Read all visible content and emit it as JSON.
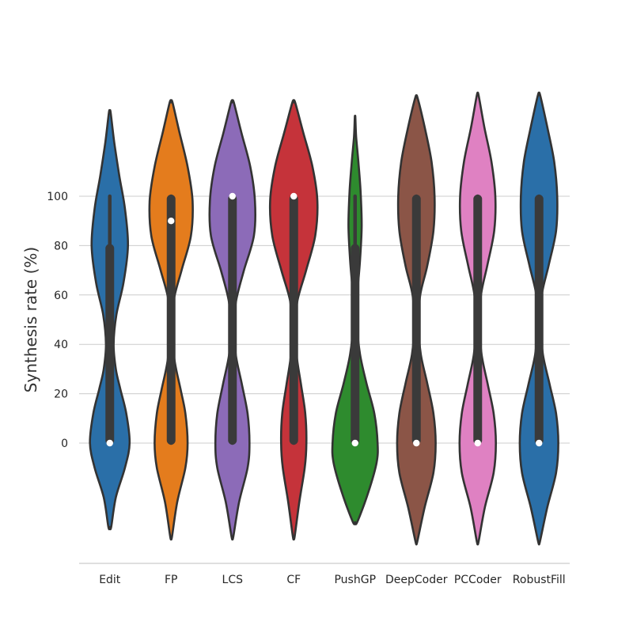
{
  "chart_data": {
    "type": "violin",
    "ylabel": "Synthesis rate (%)",
    "yticks": [
      0,
      20,
      40,
      60,
      80,
      100
    ],
    "grid": "horizontal",
    "categories": [
      "Edit",
      "FP",
      "LCS",
      "CF",
      "PushGP",
      "DeepCoder",
      "PCCoder",
      "RobustFill"
    ],
    "colors": [
      "#2a6fa8",
      "#e47c1d",
      "#8c6bb8",
      "#c5333a",
      "#2e8b2e",
      "#8b5547",
      "#df81c2",
      "#2a6fa8"
    ],
    "violins": [
      {
        "category": "Edit",
        "extent": [
          -34,
          134
        ],
        "profile": [
          [
            -34,
            0.05
          ],
          [
            -22,
            0.22
          ],
          [
            -10,
            0.55
          ],
          [
            0,
            0.72
          ],
          [
            12,
            0.6
          ],
          [
            22,
            0.38
          ],
          [
            30,
            0.22
          ],
          [
            40,
            0.14
          ],
          [
            52,
            0.24
          ],
          [
            65,
            0.5
          ],
          [
            80,
            0.66
          ],
          [
            95,
            0.55
          ],
          [
            108,
            0.35
          ],
          [
            122,
            0.16
          ],
          [
            134,
            0.03
          ]
        ],
        "box": [
          0,
          80
        ],
        "whiskers": [
          0,
          100
        ],
        "median": 0
      },
      {
        "category": "FP",
        "extent": [
          -38,
          138
        ],
        "profile": [
          [
            -38,
            0.03
          ],
          [
            -24,
            0.22
          ],
          [
            -10,
            0.52
          ],
          [
            0,
            0.6
          ],
          [
            12,
            0.52
          ],
          [
            22,
            0.34
          ],
          [
            34,
            0.12
          ],
          [
            46,
            0.06
          ],
          [
            58,
            0.1
          ],
          [
            70,
            0.38
          ],
          [
            84,
            0.72
          ],
          [
            98,
            0.78
          ],
          [
            112,
            0.6
          ],
          [
            126,
            0.3
          ],
          [
            138,
            0.05
          ]
        ],
        "box": [
          0,
          100
        ],
        "whiskers": [
          0,
          100
        ],
        "median": 90
      },
      {
        "category": "LCS",
        "extent": [
          -38,
          138
        ],
        "profile": [
          [
            -38,
            0.03
          ],
          [
            -24,
            0.24
          ],
          [
            -10,
            0.55
          ],
          [
            0,
            0.62
          ],
          [
            12,
            0.55
          ],
          [
            24,
            0.34
          ],
          [
            36,
            0.12
          ],
          [
            48,
            0.06
          ],
          [
            58,
            0.14
          ],
          [
            70,
            0.42
          ],
          [
            84,
            0.78
          ],
          [
            98,
            0.82
          ],
          [
            112,
            0.65
          ],
          [
            126,
            0.32
          ],
          [
            138,
            0.05
          ]
        ],
        "box": [
          0,
          100
        ],
        "whiskers": [
          0,
          100
        ],
        "median": 100
      },
      {
        "category": "CF",
        "extent": [
          -38,
          138
        ],
        "profile": [
          [
            -38,
            0.03
          ],
          [
            -24,
            0.2
          ],
          [
            -10,
            0.4
          ],
          [
            0,
            0.46
          ],
          [
            12,
            0.42
          ],
          [
            24,
            0.26
          ],
          [
            36,
            0.1
          ],
          [
            48,
            0.06
          ],
          [
            58,
            0.14
          ],
          [
            70,
            0.45
          ],
          [
            84,
            0.78
          ],
          [
            98,
            0.86
          ],
          [
            112,
            0.68
          ],
          [
            126,
            0.34
          ],
          [
            138,
            0.05
          ]
        ],
        "box": [
          0,
          100
        ],
        "whiskers": [
          0,
          100
        ],
        "median": 100
      },
      {
        "category": "PushGP",
        "extent": [
          -32,
          132
        ],
        "profile": [
          [
            -32,
            0.08
          ],
          [
            -20,
            0.48
          ],
          [
            -8,
            0.78
          ],
          [
            0,
            0.82
          ],
          [
            12,
            0.7
          ],
          [
            24,
            0.42
          ],
          [
            36,
            0.18
          ],
          [
            48,
            0.07
          ],
          [
            60,
            0.08
          ],
          [
            74,
            0.18
          ],
          [
            88,
            0.24
          ],
          [
            102,
            0.2
          ],
          [
            114,
            0.12
          ],
          [
            124,
            0.04
          ],
          [
            132,
            0.01
          ]
        ],
        "box": [
          0,
          80
        ],
        "whiskers": [
          0,
          100
        ],
        "median": 0
      },
      {
        "category": "DeepCoder",
        "extent": [
          -40,
          140
        ],
        "profile": [
          [
            -40,
            0.03
          ],
          [
            -26,
            0.3
          ],
          [
            -12,
            0.62
          ],
          [
            0,
            0.7
          ],
          [
            12,
            0.62
          ],
          [
            24,
            0.4
          ],
          [
            36,
            0.16
          ],
          [
            48,
            0.08
          ],
          [
            60,
            0.14
          ],
          [
            72,
            0.4
          ],
          [
            86,
            0.62
          ],
          [
            100,
            0.66
          ],
          [
            114,
            0.55
          ],
          [
            128,
            0.3
          ],
          [
            140,
            0.04
          ]
        ],
        "box": [
          0,
          100
        ],
        "whiskers": [
          0,
          100
        ],
        "median": 0
      },
      {
        "category": "PCCoder",
        "extent": [
          -40,
          141
        ],
        "profile": [
          [
            -40,
            0.03
          ],
          [
            -26,
            0.26
          ],
          [
            -12,
            0.58
          ],
          [
            0,
            0.66
          ],
          [
            12,
            0.58
          ],
          [
            24,
            0.36
          ],
          [
            36,
            0.14
          ],
          [
            48,
            0.07
          ],
          [
            60,
            0.12
          ],
          [
            72,
            0.35
          ],
          [
            86,
            0.6
          ],
          [
            100,
            0.64
          ],
          [
            114,
            0.5
          ],
          [
            128,
            0.24
          ],
          [
            141,
            0.03
          ]
        ],
        "box": [
          0,
          100
        ],
        "whiskers": [
          0,
          100
        ],
        "median": 0
      },
      {
        "category": "RobustFill",
        "extent": [
          -40,
          141
        ],
        "profile": [
          [
            -40,
            0.03
          ],
          [
            -26,
            0.3
          ],
          [
            -12,
            0.62
          ],
          [
            0,
            0.7
          ],
          [
            12,
            0.62
          ],
          [
            24,
            0.38
          ],
          [
            36,
            0.14
          ],
          [
            48,
            0.06
          ],
          [
            60,
            0.1
          ],
          [
            72,
            0.35
          ],
          [
            86,
            0.62
          ],
          [
            100,
            0.66
          ],
          [
            114,
            0.55
          ],
          [
            128,
            0.3
          ],
          [
            141,
            0.04
          ]
        ],
        "box": [
          0,
          100
        ],
        "whiskers": [
          0,
          100
        ],
        "median": 0
      }
    ]
  }
}
